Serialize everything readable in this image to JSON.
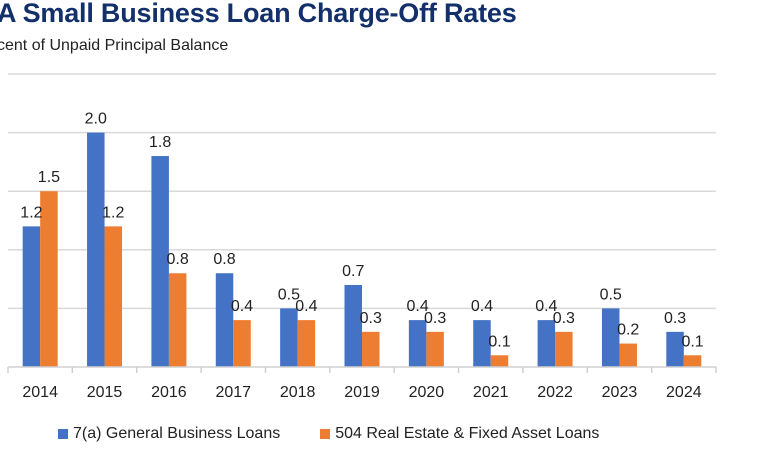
{
  "chart_data": {
    "type": "bar",
    "title": "A Small Business Loan Charge-Off Rates",
    "subtitle": "cent of Unpaid Principal Balance",
    "xlabel": "",
    "ylabel": "",
    "categories": [
      "2014",
      "2015",
      "2016",
      "2017",
      "2018",
      "2019",
      "2020",
      "2021",
      "2022",
      "2023",
      "2024"
    ],
    "series": [
      {
        "name": "7(a) General Business Loans",
        "color": "#4472C4",
        "values": [
          1.2,
          2.0,
          1.8,
          0.8,
          0.5,
          0.7,
          0.4,
          0.4,
          0.4,
          0.5,
          0.3
        ]
      },
      {
        "name": "504 Real Estate & Fixed Asset Loans",
        "color": "#ED7D31",
        "values": [
          1.5,
          1.2,
          0.8,
          0.4,
          0.4,
          0.3,
          0.3,
          0.1,
          0.3,
          0.2,
          0.1
        ]
      }
    ],
    "ylim": [
      0,
      2.5
    ],
    "ygrid_step": 0.5,
    "grid": true,
    "legend": "bottom"
  }
}
